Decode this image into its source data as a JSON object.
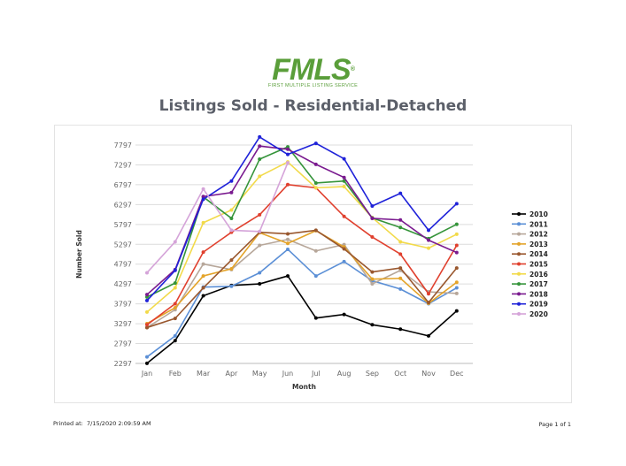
{
  "logo": {
    "mark": "FMLS",
    "reg": "®",
    "subtitle": "FIRST MULTIPLE LISTING SERVICE"
  },
  "footer": {
    "printed_label": "Printed at:",
    "printed_value": "7/15/2020 2:09:59 AM",
    "page": "Page 1 of 1"
  },
  "chart_data": {
    "type": "line",
    "title": "Listings Sold - Residential-Detached",
    "xlabel": "Month",
    "ylabel": "Number Sold",
    "categories": [
      "Jan",
      "Feb",
      "Mar",
      "Apr",
      "May",
      "Jun",
      "Jul",
      "Aug",
      "Sep",
      "Oct",
      "Nov",
      "Dec"
    ],
    "yticks": [
      2297,
      2797,
      3297,
      3797,
      4297,
      4797,
      5297,
      5797,
      6297,
      6797,
      7297,
      7797
    ],
    "ylim": [
      2297,
      7797
    ],
    "grid": true,
    "legend_position": "right",
    "series": [
      {
        "name": "2010",
        "color": "#000000",
        "values": [
          2300,
          2870,
          4000,
          4260,
          4300,
          4500,
          3440,
          3530,
          3270,
          3160,
          2990,
          3620
        ]
      },
      {
        "name": "2011",
        "color": "#5b8fd6",
        "values": [
          2460,
          2990,
          4220,
          4240,
          4580,
          5170,
          4500,
          4860,
          4380,
          4170,
          3800,
          4200
        ]
      },
      {
        "name": "2012",
        "color": "#b7a79a",
        "values": [
          3200,
          3650,
          4800,
          4660,
          5270,
          5420,
          5130,
          5290,
          4300,
          4640,
          4100,
          4060
        ]
      },
      {
        "name": "2013",
        "color": "#e4a42a",
        "values": [
          3300,
          3700,
          4500,
          4680,
          5590,
          5320,
          5640,
          5230,
          4420,
          4440,
          3810,
          4340
        ]
      },
      {
        "name": "2014",
        "color": "#99572e",
        "values": [
          3200,
          3430,
          4200,
          4900,
          5600,
          5560,
          5650,
          5180,
          4600,
          4700,
          3830,
          4700
        ]
      },
      {
        "name": "2015",
        "color": "#e0402e",
        "values": [
          3270,
          3800,
          5100,
          5600,
          6040,
          6800,
          6720,
          6000,
          5480,
          5050,
          4050,
          5270
        ]
      },
      {
        "name": "2016",
        "color": "#f2da4a",
        "values": [
          3590,
          4200,
          5840,
          6160,
          7010,
          7370,
          6720,
          6750,
          5970,
          5360,
          5200,
          5550
        ]
      },
      {
        "name": "2017",
        "color": "#35943a",
        "values": [
          3970,
          4320,
          6490,
          5950,
          7440,
          7750,
          6840,
          6890,
          5960,
          5720,
          5440,
          5800
        ]
      },
      {
        "name": "2018",
        "color": "#7a1a8f",
        "values": [
          4030,
          4660,
          6500,
          6600,
          7770,
          7690,
          7310,
          6980,
          5950,
          5910,
          5400,
          5090
        ]
      },
      {
        "name": "2019",
        "color": "#1f22d9",
        "values": [
          3880,
          4640,
          6430,
          6890,
          8000,
          7560,
          7840,
          7450,
          6260,
          6580,
          5650,
          6320
        ]
      },
      {
        "name": "2020",
        "color": "#d5a4d9",
        "values": [
          4580,
          5360,
          6690,
          5650,
          5620,
          7350,
          null,
          null,
          null,
          null,
          null,
          null
        ]
      }
    ]
  }
}
